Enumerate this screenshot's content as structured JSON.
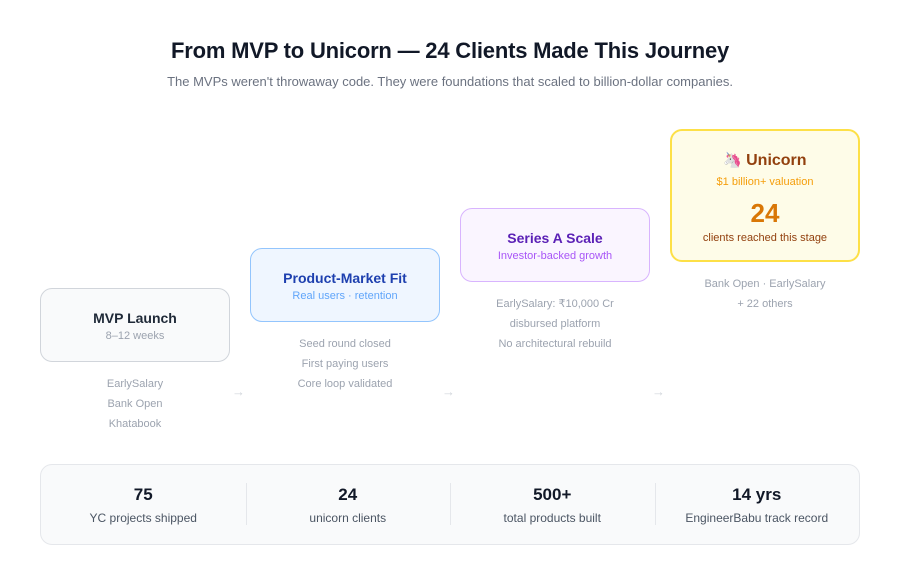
{
  "header": {
    "title": "From MVP to Unicorn — 24 Clients Made This Journey",
    "subtitle": "The MVPs weren't throwaway code. They were foundations that scaled to billion-dollar companies."
  },
  "stages": [
    {
      "title": "MVP Launch",
      "subtitle": "8–12 weeks",
      "notes": [
        "EarlySalary",
        "Bank Open",
        "Khatabook"
      ]
    },
    {
      "title": "Product-Market Fit",
      "subtitle": "Real users · retention",
      "notes": [
        "Seed round closed",
        "First paying users",
        "Core loop validated"
      ]
    },
    {
      "title": "Series A Scale",
      "subtitle": "Investor-backed growth",
      "notes": [
        "EarlySalary: ₹10,000 Cr",
        "disbursed platform",
        "No architectural rebuild"
      ]
    },
    {
      "emoji": "🦄",
      "title": "Unicorn",
      "subtitle": "$1 billion+ valuation",
      "count": "24",
      "count_caption": "clients reached this stage",
      "notes": [
        "Bank Open · EarlySalary",
        "+ 22 others"
      ]
    }
  ],
  "arrow_glyph": "→",
  "stats": [
    {
      "value": "75",
      "label": "YC projects shipped"
    },
    {
      "value": "24",
      "label": "unicorn clients"
    },
    {
      "value": "500+",
      "label": "total products built"
    },
    {
      "value": "14 yrs",
      "label": "EngineerBabu track record"
    }
  ],
  "colors": {
    "mvp": "#f9fafb",
    "pmf": "#eff6ff",
    "series": "#faf5ff",
    "unicorn": "#fefce8",
    "unicorn_accent": "#d97706"
  }
}
